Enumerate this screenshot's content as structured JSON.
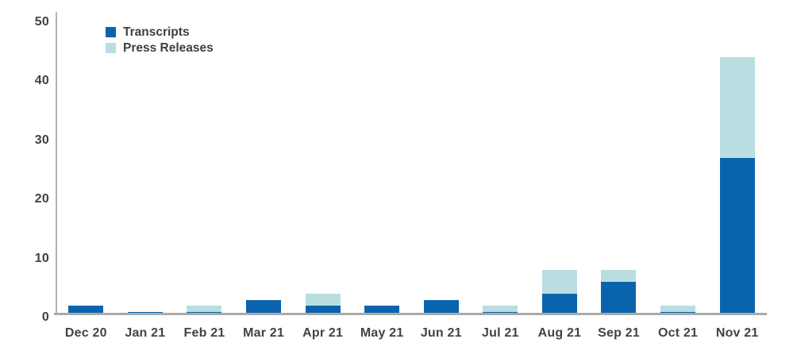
{
  "chart_data": {
    "type": "bar",
    "stacked": true,
    "title": "",
    "xlabel": "",
    "ylabel": "",
    "categories": [
      "Dec 20",
      "Jan 21",
      "Feb 21",
      "Mar 21",
      "Apr 21",
      "May 21",
      "Jun 21",
      "Jul 21",
      "Aug 21",
      "Sep 21",
      "Oct 21",
      "Nov 21"
    ],
    "series": [
      {
        "name": "Transcripts",
        "color": "#0a64ad",
        "values": [
          2,
          1,
          1,
          3,
          2,
          2,
          3,
          1,
          4,
          6,
          1,
          27
        ]
      },
      {
        "name": "Press Releases",
        "color": "#b9dee2",
        "values": [
          0,
          0,
          1,
          0,
          2,
          0,
          0,
          1,
          4,
          2,
          1,
          17
        ]
      }
    ],
    "totals": [
      2,
      1,
      2,
      3,
      4,
      2,
      3,
      2,
      8,
      8,
      2,
      44
    ],
    "ylim": [
      0,
      50
    ],
    "yticks": [
      0,
      10,
      20,
      30,
      40,
      50
    ],
    "grid": false,
    "legend_position": "top-left"
  },
  "colors": {
    "transcripts": "#0a64ad",
    "press_releases": "#b9dee2",
    "axis_line": "#b3b3b3",
    "baseline": "#a9a9a9",
    "text": "#414141",
    "background": "#ffffff"
  }
}
